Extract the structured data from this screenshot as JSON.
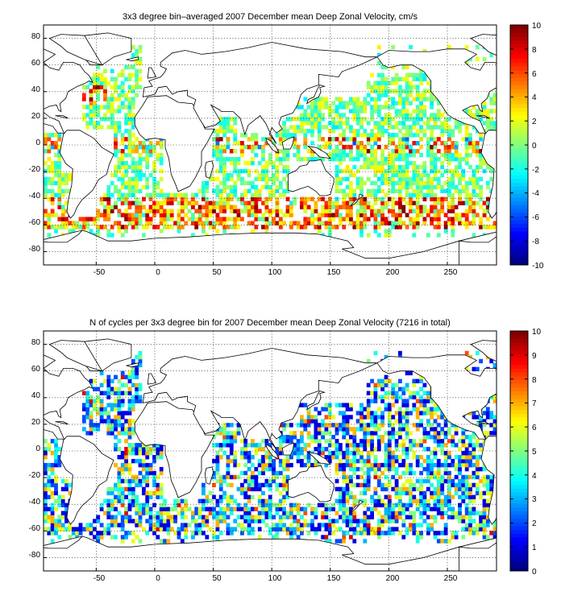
{
  "panels": [
    {
      "id": "velocity",
      "title": "3x3 degree bin–averaged 2007 December mean Deep Zonal Velocity, cm/s",
      "colorbar_ticks": [
        "10",
        "8",
        "6",
        "4",
        "2",
        "0",
        "-2",
        "-4",
        "-6",
        "-8",
        "-10"
      ],
      "clim": [
        -10,
        10
      ],
      "field": "velocity"
    },
    {
      "id": "counts",
      "title": "N of cycles per 3x3 degree bin for 2007 December mean Deep Zonal Velocity (7216 in total)",
      "colorbar_ticks": [
        "10",
        "9",
        "8",
        "7",
        "6",
        "5",
        "4",
        "3",
        "2",
        "1",
        "0"
      ],
      "clim": [
        0,
        10
      ],
      "field": "counts"
    }
  ],
  "axes": {
    "x_ticks": [
      "-50",
      "0",
      "50",
      "100",
      "150",
      "200",
      "250"
    ],
    "y_ticks": [
      "80",
      "60",
      "40",
      "20",
      "0",
      "-20",
      "-40",
      "-60",
      "-80"
    ],
    "xlim": [
      -95,
      292
    ],
    "ylim": [
      -90,
      90
    ],
    "bin_size_deg": 3,
    "grid": true,
    "colormap": "jet"
  }
}
